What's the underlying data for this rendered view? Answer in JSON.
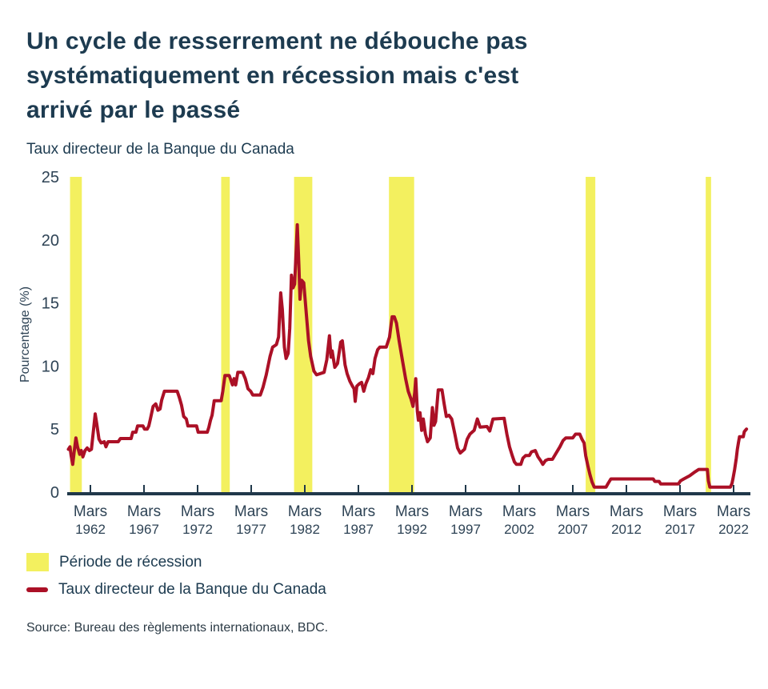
{
  "header": {
    "title": "Un cycle de resserrement ne débouche pas systématiquement en récession mais c'est arrivé par le passé",
    "subtitle": "Taux directeur de la Banque du Canada"
  },
  "legend": {
    "items": [
      {
        "label": "Période de récession",
        "type": "band"
      },
      {
        "label": "Taux directeur de la Banque du Canada",
        "type": "line"
      }
    ]
  },
  "footer": {
    "source": "Source: Bureau des règlements internationaux, BDC."
  },
  "colors": {
    "recession_band": "#f3f05f",
    "rate_line": "#ab1026",
    "axis": "#20384a",
    "text": "#2e4355"
  },
  "chart_data": {
    "type": "line",
    "title": "Un cycle de resserrement ne débouche pas systématiquement en récession mais c'est arrivé par le passé",
    "subtitle": "Taux directeur de la Banque du Canada",
    "xlabel": "",
    "ylabel": "Pourcentage (%)",
    "ylim": [
      0,
      25
    ],
    "yticks": [
      0,
      5,
      10,
      15,
      20,
      25
    ],
    "xtick_prefix": "Mars",
    "xtick_years": [
      1962,
      1967,
      1972,
      1977,
      1982,
      1987,
      1992,
      1997,
      2002,
      2007,
      2012,
      2017,
      2022
    ],
    "x_range": [
      1959.9,
      2023.5
    ],
    "grid": false,
    "legend_position": "bottom-left",
    "recession_bands": [
      [
        1960.1,
        1961.2
      ],
      [
        1974.2,
        1975.0
      ],
      [
        1981.0,
        1982.7
      ],
      [
        1989.85,
        1992.2
      ],
      [
        2008.2,
        2009.1
      ],
      [
        2019.4,
        2019.9
      ]
    ],
    "series": [
      {
        "name": "Taux directeur de la Banque du Canada",
        "points": [
          [
            1959.95,
            3.4
          ],
          [
            1960.1,
            3.6
          ],
          [
            1960.2,
            2.9
          ],
          [
            1960.35,
            2.2
          ],
          [
            1960.5,
            3.3
          ],
          [
            1960.65,
            4.3
          ],
          [
            1960.8,
            3.6
          ],
          [
            1961.0,
            3.0
          ],
          [
            1961.15,
            3.3
          ],
          [
            1961.3,
            2.8
          ],
          [
            1961.5,
            3.3
          ],
          [
            1961.7,
            3.5
          ],
          [
            1961.9,
            3.3
          ],
          [
            1962.1,
            3.4
          ],
          [
            1962.3,
            5.0
          ],
          [
            1962.45,
            6.2
          ],
          [
            1962.6,
            5.4
          ],
          [
            1962.8,
            4.2
          ],
          [
            1963.0,
            3.9
          ],
          [
            1963.3,
            4.0
          ],
          [
            1963.45,
            3.6
          ],
          [
            1963.65,
            4.0
          ],
          [
            1964.6,
            4.0
          ],
          [
            1964.8,
            4.25
          ],
          [
            1965.8,
            4.25
          ],
          [
            1965.95,
            4.75
          ],
          [
            1966.25,
            4.75
          ],
          [
            1966.4,
            5.25
          ],
          [
            1966.9,
            5.25
          ],
          [
            1967.05,
            5.0
          ],
          [
            1967.3,
            5.0
          ],
          [
            1967.45,
            5.25
          ],
          [
            1967.6,
            5.8
          ],
          [
            1967.85,
            6.8
          ],
          [
            1968.1,
            7.0
          ],
          [
            1968.3,
            6.5
          ],
          [
            1968.5,
            6.6
          ],
          [
            1968.65,
            7.3
          ],
          [
            1968.9,
            8.0
          ],
          [
            1970.1,
            8.0
          ],
          [
            1970.3,
            7.5
          ],
          [
            1970.5,
            6.9
          ],
          [
            1970.7,
            6.0
          ],
          [
            1970.95,
            5.8
          ],
          [
            1971.1,
            5.25
          ],
          [
            1971.9,
            5.25
          ],
          [
            1972.05,
            4.75
          ],
          [
            1972.9,
            4.75
          ],
          [
            1973.05,
            5.15
          ],
          [
            1973.2,
            5.7
          ],
          [
            1973.35,
            6.1
          ],
          [
            1973.55,
            7.25
          ],
          [
            1974.2,
            7.25
          ],
          [
            1974.35,
            8.0
          ],
          [
            1974.55,
            9.25
          ],
          [
            1974.95,
            9.25
          ],
          [
            1975.1,
            8.9
          ],
          [
            1975.25,
            8.5
          ],
          [
            1975.4,
            9.0
          ],
          [
            1975.55,
            8.5
          ],
          [
            1975.75,
            9.5
          ],
          [
            1976.2,
            9.5
          ],
          [
            1976.45,
            9.0
          ],
          [
            1976.7,
            8.2
          ],
          [
            1976.95,
            8.0
          ],
          [
            1977.15,
            7.7
          ],
          [
            1977.85,
            7.7
          ],
          [
            1978.1,
            8.3
          ],
          [
            1978.4,
            9.3
          ],
          [
            1978.75,
            10.75
          ],
          [
            1979.0,
            11.5
          ],
          [
            1979.35,
            11.7
          ],
          [
            1979.55,
            12.3
          ],
          [
            1979.75,
            15.8
          ],
          [
            1979.9,
            14.5
          ],
          [
            1980.1,
            11.5
          ],
          [
            1980.25,
            10.6
          ],
          [
            1980.45,
            11.0
          ],
          [
            1980.6,
            13.0
          ],
          [
            1980.75,
            17.2
          ],
          [
            1980.9,
            16.2
          ],
          [
            1981.05,
            16.5
          ],
          [
            1981.2,
            19.3
          ],
          [
            1981.3,
            21.2
          ],
          [
            1981.45,
            18.0
          ],
          [
            1981.55,
            15.3
          ],
          [
            1981.7,
            16.8
          ],
          [
            1981.9,
            16.6
          ],
          [
            1982.1,
            14.6
          ],
          [
            1982.35,
            12.0
          ],
          [
            1982.55,
            10.75
          ],
          [
            1982.85,
            9.6
          ],
          [
            1983.1,
            9.3
          ],
          [
            1983.8,
            9.5
          ],
          [
            1984.05,
            10.5
          ],
          [
            1984.3,
            12.4
          ],
          [
            1984.45,
            10.7
          ],
          [
            1984.55,
            11.2
          ],
          [
            1984.8,
            9.9
          ],
          [
            1985.05,
            10.2
          ],
          [
            1985.35,
            11.9
          ],
          [
            1985.5,
            12.0
          ],
          [
            1985.75,
            10.1
          ],
          [
            1985.95,
            9.4
          ],
          [
            1986.2,
            8.8
          ],
          [
            1986.45,
            8.4
          ],
          [
            1986.6,
            8.2
          ],
          [
            1986.7,
            7.2
          ],
          [
            1986.85,
            8.4
          ],
          [
            1987.1,
            8.6
          ],
          [
            1987.3,
            8.7
          ],
          [
            1987.5,
            8.0
          ],
          [
            1987.7,
            8.6
          ],
          [
            1987.95,
            9.1
          ],
          [
            1988.15,
            9.7
          ],
          [
            1988.35,
            9.4
          ],
          [
            1988.55,
            10.6
          ],
          [
            1988.8,
            11.3
          ],
          [
            1989.0,
            11.5
          ],
          [
            1989.6,
            11.5
          ],
          [
            1989.9,
            12.3
          ],
          [
            1990.05,
            13.3
          ],
          [
            1990.15,
            13.9
          ],
          [
            1990.35,
            13.9
          ],
          [
            1990.55,
            13.4
          ],
          [
            1990.8,
            12.0
          ],
          [
            1991.1,
            10.5
          ],
          [
            1991.4,
            9.0
          ],
          [
            1991.65,
            8.0
          ],
          [
            1991.9,
            7.4
          ],
          [
            1992.1,
            6.8
          ],
          [
            1992.25,
            7.9
          ],
          [
            1992.35,
            9.0
          ],
          [
            1992.5,
            6.4
          ],
          [
            1992.6,
            5.7
          ],
          [
            1992.75,
            6.3
          ],
          [
            1992.9,
            4.9
          ],
          [
            1993.05,
            5.8
          ],
          [
            1993.25,
            4.6
          ],
          [
            1993.45,
            4.0
          ],
          [
            1993.7,
            4.3
          ],
          [
            1993.9,
            6.7
          ],
          [
            1994.05,
            5.3
          ],
          [
            1994.2,
            5.6
          ],
          [
            1994.45,
            8.1
          ],
          [
            1994.8,
            8.1
          ],
          [
            1995.0,
            7.0
          ],
          [
            1995.2,
            6.0
          ],
          [
            1995.45,
            6.1
          ],
          [
            1995.7,
            5.8
          ],
          [
            1996.0,
            4.6
          ],
          [
            1996.25,
            3.5
          ],
          [
            1996.5,
            3.1
          ],
          [
            1996.9,
            3.4
          ],
          [
            1997.15,
            4.2
          ],
          [
            1997.4,
            4.6
          ],
          [
            1997.8,
            4.9
          ],
          [
            1998.1,
            5.8
          ],
          [
            1998.35,
            5.15
          ],
          [
            1999.0,
            5.2
          ],
          [
            1999.25,
            4.85
          ],
          [
            1999.55,
            5.8
          ],
          [
            2000.6,
            5.85
          ],
          [
            2000.85,
            4.6
          ],
          [
            2001.1,
            3.6
          ],
          [
            2001.35,
            2.9
          ],
          [
            2001.55,
            2.4
          ],
          [
            2001.75,
            2.2
          ],
          [
            2002.15,
            2.2
          ],
          [
            2002.35,
            2.7
          ],
          [
            2002.6,
            2.9
          ],
          [
            2002.95,
            2.9
          ],
          [
            2003.15,
            3.2
          ],
          [
            2003.5,
            3.3
          ],
          [
            2003.75,
            2.8
          ],
          [
            2004.0,
            2.5
          ],
          [
            2004.2,
            2.2
          ],
          [
            2004.45,
            2.5
          ],
          [
            2004.7,
            2.6
          ],
          [
            2005.1,
            2.6
          ],
          [
            2005.45,
            3.1
          ],
          [
            2005.8,
            3.6
          ],
          [
            2006.1,
            4.1
          ],
          [
            2006.35,
            4.3
          ],
          [
            2007.0,
            4.3
          ],
          [
            2007.25,
            4.6
          ],
          [
            2007.65,
            4.6
          ],
          [
            2007.85,
            4.2
          ],
          [
            2008.05,
            3.9
          ],
          [
            2008.2,
            2.9
          ],
          [
            2008.4,
            2.1
          ],
          [
            2008.6,
            1.4
          ],
          [
            2008.8,
            0.8
          ],
          [
            2009.0,
            0.4
          ],
          [
            2010.1,
            0.4
          ],
          [
            2010.3,
            0.7
          ],
          [
            2010.55,
            1.05
          ],
          [
            2014.5,
            1.05
          ],
          [
            2014.65,
            0.85
          ],
          [
            2015.05,
            0.85
          ],
          [
            2015.2,
            0.65
          ],
          [
            2016.85,
            0.65
          ],
          [
            2017.05,
            0.9
          ],
          [
            2017.35,
            1.05
          ],
          [
            2017.9,
            1.3
          ],
          [
            2018.3,
            1.55
          ],
          [
            2018.75,
            1.8
          ],
          [
            2019.55,
            1.8
          ],
          [
            2019.65,
            0.9
          ],
          [
            2019.78,
            0.4
          ],
          [
            2021.7,
            0.4
          ],
          [
            2021.85,
            0.7
          ],
          [
            2021.95,
            1.1
          ],
          [
            2022.1,
            1.8
          ],
          [
            2022.25,
            2.7
          ],
          [
            2022.35,
            3.4
          ],
          [
            2022.45,
            3.9
          ],
          [
            2022.55,
            4.4
          ],
          [
            2022.9,
            4.4
          ],
          [
            2023.0,
            4.8
          ],
          [
            2023.2,
            5.0
          ]
        ]
      }
    ]
  }
}
